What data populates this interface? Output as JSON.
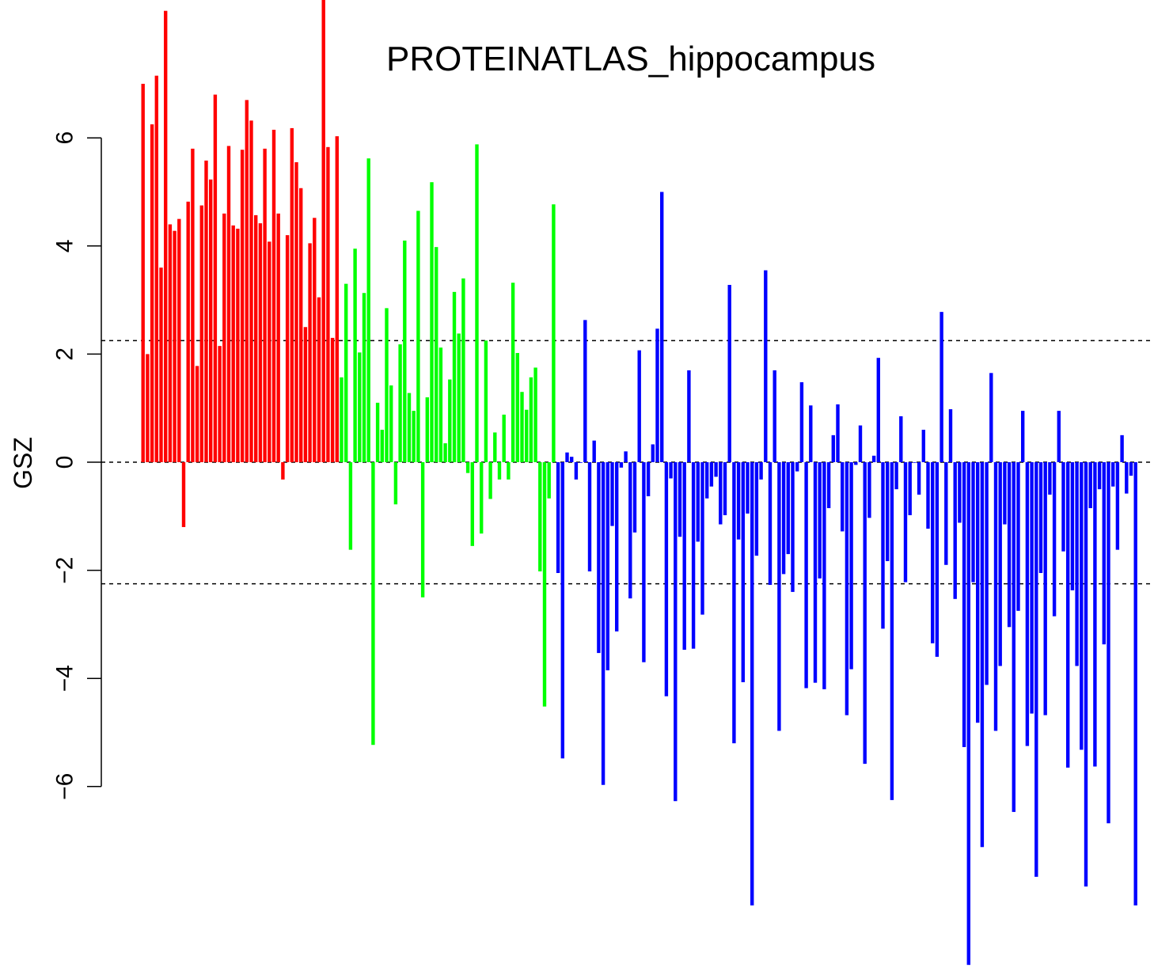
{
  "chart_data": {
    "type": "bar",
    "title": "PROTEINATLAS_hippocampus",
    "xlabel": "",
    "ylabel": "GSZ",
    "ylim": [
      -9.5,
      8.6
    ],
    "yticks": [
      {
        "value": 6,
        "label": "6"
      },
      {
        "value": 4,
        "label": "4"
      },
      {
        "value": 2,
        "label": "2"
      },
      {
        "value": 0,
        "label": "0"
      },
      {
        "value": -2,
        "label": "−2"
      },
      {
        "value": -4,
        "label": "−4"
      },
      {
        "value": -6,
        "label": "−6"
      }
    ],
    "reference_lines": [
      2.25,
      0,
      -2.25
    ],
    "grid": false,
    "legend": "none",
    "series": [
      {
        "color": "#ff0000",
        "values": [
          7.0,
          2.0,
          6.25,
          7.15,
          3.6,
          8.35,
          4.4,
          4.28,
          4.5,
          -1.2,
          4.82,
          5.8,
          1.78,
          4.75,
          5.58,
          5.23,
          6.8,
          2.15,
          4.6,
          5.85,
          4.38,
          4.32,
          5.78,
          6.7,
          6.32,
          4.57,
          4.42,
          5.8,
          4.08,
          6.15,
          4.6,
          -0.32,
          4.2,
          6.18,
          5.55,
          5.07,
          2.5,
          4.05,
          4.52,
          3.05,
          8.6,
          5.83,
          2.3,
          6.03
        ]
      },
      {
        "color": "#00ff00",
        "values": [
          1.57,
          3.3,
          -1.62,
          3.95,
          2.03,
          3.13,
          5.62,
          -5.23,
          1.1,
          0.6,
          2.85,
          1.42,
          -0.78,
          2.18,
          4.1,
          1.28,
          0.95,
          4.65,
          -2.5,
          1.2,
          5.18,
          3.98,
          2.12,
          0.35,
          1.53,
          3.15,
          2.38,
          3.4,
          -0.2,
          -1.55,
          5.88,
          -1.32,
          2.25,
          -0.68,
          0.55,
          -0.32,
          0.88,
          -0.32,
          3.32,
          2.02,
          1.3,
          0.97,
          1.57,
          1.75,
          -2.02,
          -4.52,
          -0.67,
          4.77
        ]
      },
      {
        "color": "#0000ff",
        "values": [
          -2.05,
          -5.48,
          0.18,
          0.1,
          -0.32,
          0.0,
          2.63,
          -2.02,
          0.4,
          -3.53,
          -5.97,
          -3.85,
          -1.18,
          -3.13,
          -0.1,
          0.2,
          -2.52,
          -1.3,
          2.07,
          -3.7,
          -0.63,
          0.33,
          2.47,
          5.0,
          -4.33,
          -0.3,
          -6.27,
          -1.38,
          -3.47,
          1.7,
          -3.45,
          -1.47,
          -2.82,
          -0.67,
          -0.45,
          -0.27,
          -1.15,
          -0.98,
          3.28,
          -5.2,
          -1.43,
          -4.07,
          -0.95,
          -8.2,
          -1.73,
          -0.32,
          3.55,
          -2.27,
          1.7,
          -4.97,
          -2.07,
          -1.7,
          -2.4,
          -0.17,
          1.48,
          -4.18,
          1.05,
          -4.08,
          -2.15,
          -4.2,
          -0.85,
          0.5,
          1.07,
          -1.28,
          -4.68,
          -3.83,
          -0.05,
          0.68,
          -5.58,
          -1.03,
          0.12,
          1.93,
          -3.08,
          -1.83,
          -6.25,
          -0.5,
          0.85,
          -2.22,
          -0.98,
          0.0,
          -0.6,
          0.6,
          -1.23,
          -3.35,
          -3.6,
          2.78,
          -1.9,
          0.98,
          -2.53,
          -1.12,
          -5.27,
          -9.3,
          -2.22,
          -4.82,
          -7.12,
          -4.12,
          1.65,
          -4.97,
          -3.77,
          -1.15,
          -3.05,
          -6.47,
          -2.75,
          0.95,
          -5.25,
          -4.65,
          -7.67,
          -2.05,
          -4.68,
          -0.6,
          -2.85,
          0.95,
          -1.65,
          -5.65,
          -2.37,
          -3.77,
          -5.32,
          -7.85,
          -0.85,
          -5.63,
          -0.5,
          -3.37,
          -6.68,
          -0.45,
          -1.62,
          0.5,
          -0.58,
          -0.25,
          -8.2
        ]
      }
    ]
  }
}
